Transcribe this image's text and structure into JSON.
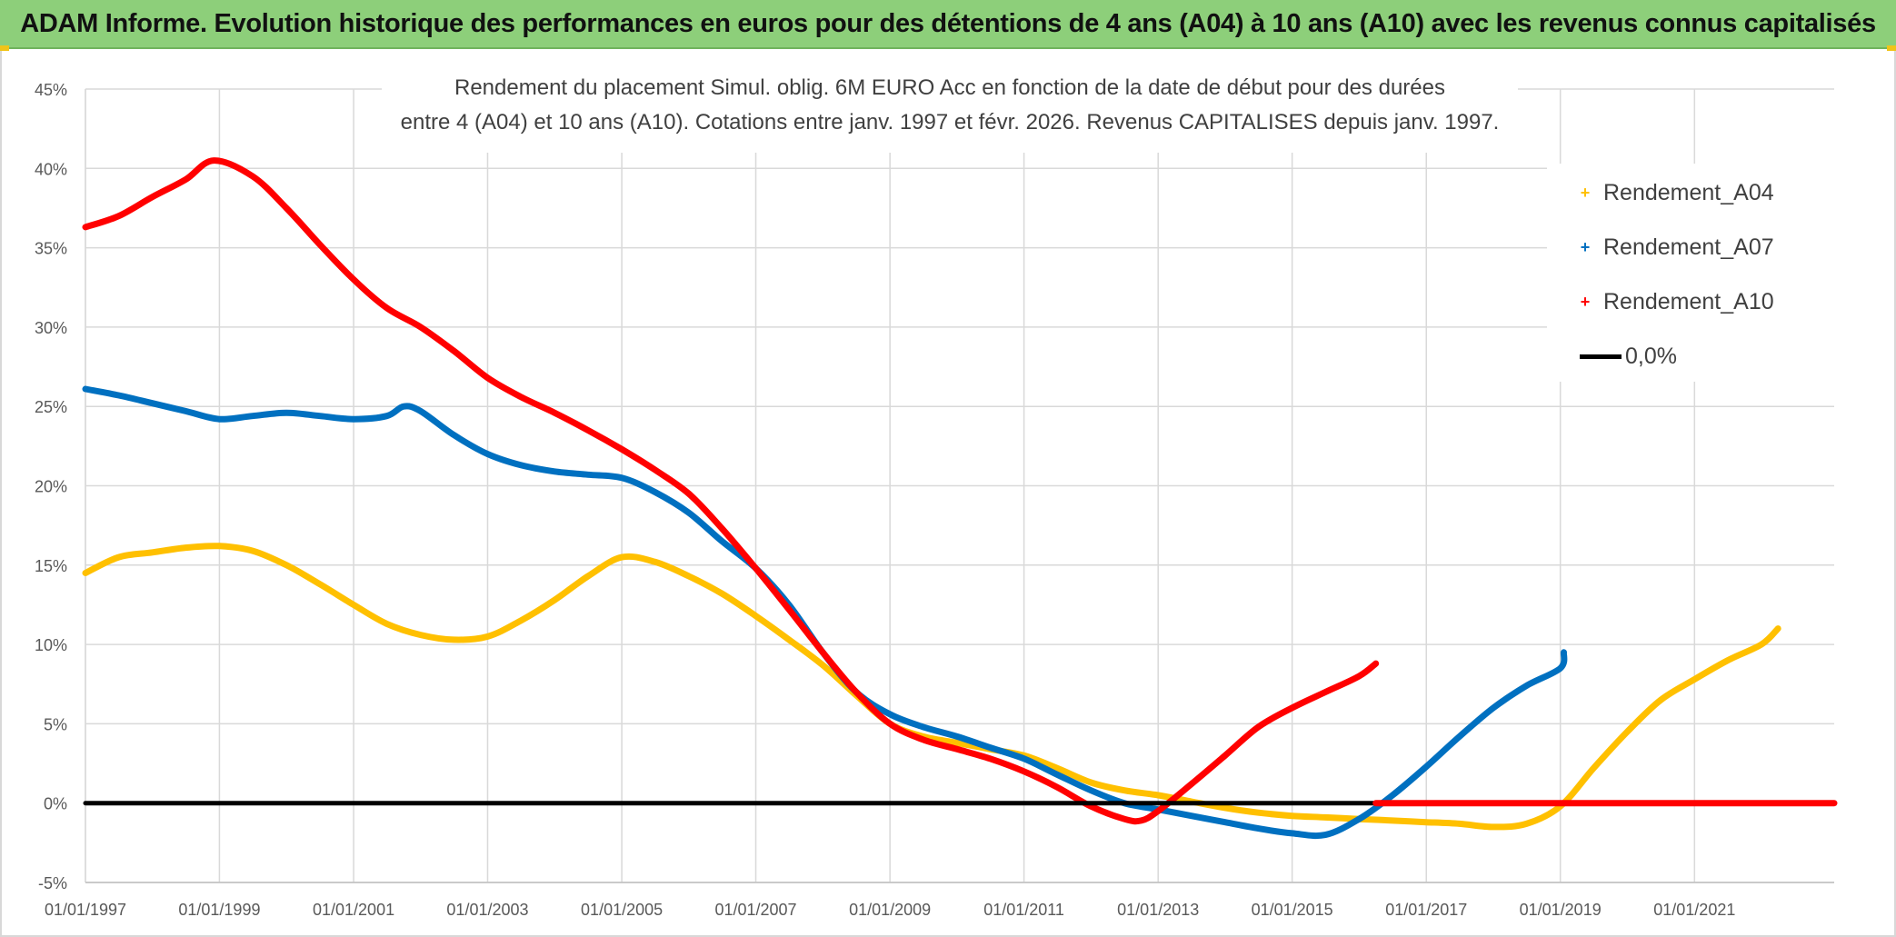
{
  "header": {
    "title": "ADAM Informe. Evolution historique des performances en euros pour des détentions de 4 ans (A04) à 10 ans (A10) avec les revenus connus capitalisés"
  },
  "subtitle": {
    "line1": "Rendement du placement Simul. oblig. 6M EURO Acc en fonction de la date de début pour des durées",
    "line2": "entre 4 (A04) et 10 ans (A10). Cotations entre janv. 1997 et févr. 2026. Revenus CAPITALISES depuis janv. 1997."
  },
  "legend": {
    "a04": "Rendement_A04",
    "a07": "Rendement_A07",
    "a10": "Rendement_A10",
    "zero": "0,0%",
    "marker": "+"
  },
  "chart_data": {
    "type": "line",
    "title": "Rendement du placement Simul. oblig. 6M EURO Acc en fonction de la date de début pour des durées entre 4 (A04) et 10 ans (A10). Cotations entre janv. 1997 et févr. 2026. Revenus CAPITALISES depuis janv. 1997.",
    "xlabel": "",
    "ylabel": "",
    "x_type": "date",
    "xlim": [
      "1997-01-01",
      "2023-02-01"
    ],
    "ylim": [
      -5,
      45
    ],
    "x_ticks": [
      "01/01/1997",
      "01/01/1999",
      "01/01/2001",
      "01/01/2003",
      "01/01/2005",
      "01/01/2007",
      "01/01/2009",
      "01/01/2011",
      "01/01/2013",
      "01/01/2015",
      "01/01/2017",
      "01/01/2019",
      "01/01/2021"
    ],
    "x_tick_dates": [
      "1997-01-01",
      "1999-01-01",
      "2001-01-01",
      "2003-01-01",
      "2005-01-01",
      "2007-01-01",
      "2009-01-01",
      "2011-01-01",
      "2013-01-01",
      "2015-01-01",
      "2017-01-01",
      "2019-01-01",
      "2021-01-01"
    ],
    "y_ticks": [
      -5,
      0,
      5,
      10,
      15,
      20,
      25,
      30,
      35,
      40,
      45
    ],
    "y_tick_labels": [
      "-5%",
      "0%",
      "5%",
      "10%",
      "15%",
      "20%",
      "25%",
      "30%",
      "35%",
      "40%",
      "45%"
    ],
    "grid": true,
    "legend_position": "right",
    "series": [
      {
        "name": "Rendement_A04",
        "color": "#ffc000",
        "points": [
          [
            "1997-01-01",
            14.5
          ],
          [
            "1997-07-01",
            15.5
          ],
          [
            "1998-01-01",
            15.8
          ],
          [
            "1998-07-01",
            16.1
          ],
          [
            "1999-01-01",
            16.2
          ],
          [
            "1999-07-01",
            15.9
          ],
          [
            "2000-01-01",
            15.0
          ],
          [
            "2000-07-01",
            13.8
          ],
          [
            "2001-01-01",
            12.5
          ],
          [
            "2001-07-01",
            11.3
          ],
          [
            "2002-01-01",
            10.6
          ],
          [
            "2002-07-01",
            10.3
          ],
          [
            "2003-01-01",
            10.5
          ],
          [
            "2003-07-01",
            11.5
          ],
          [
            "2004-01-01",
            12.8
          ],
          [
            "2004-07-01",
            14.3
          ],
          [
            "2005-01-01",
            15.5
          ],
          [
            "2005-07-01",
            15.2
          ],
          [
            "2006-01-01",
            14.3
          ],
          [
            "2006-07-01",
            13.2
          ],
          [
            "2007-01-01",
            11.8
          ],
          [
            "2007-07-01",
            10.3
          ],
          [
            "2008-01-01",
            8.7
          ],
          [
            "2008-07-01",
            6.8
          ],
          [
            "2009-01-01",
            5.0
          ],
          [
            "2009-07-01",
            4.2
          ],
          [
            "2010-01-01",
            3.8
          ],
          [
            "2010-07-01",
            3.4
          ],
          [
            "2011-01-01",
            3.0
          ],
          [
            "2011-07-01",
            2.2
          ],
          [
            "2012-01-01",
            1.3
          ],
          [
            "2012-07-01",
            0.8
          ],
          [
            "2013-01-01",
            0.5
          ],
          [
            "2013-07-01",
            0.1
          ],
          [
            "2014-01-01",
            -0.3
          ],
          [
            "2014-07-01",
            -0.6
          ],
          [
            "2015-01-01",
            -0.8
          ],
          [
            "2015-07-01",
            -0.9
          ],
          [
            "2016-01-01",
            -1.0
          ],
          [
            "2016-07-01",
            -1.1
          ],
          [
            "2017-01-01",
            -1.2
          ],
          [
            "2017-07-01",
            -1.3
          ],
          [
            "2018-01-01",
            -1.5
          ],
          [
            "2018-07-01",
            -1.3
          ],
          [
            "2019-01-01",
            -0.2
          ],
          [
            "2019-07-01",
            2.2
          ],
          [
            "2020-01-01",
            4.5
          ],
          [
            "2020-07-01",
            6.5
          ],
          [
            "2021-01-01",
            7.8
          ],
          [
            "2021-07-01",
            9.0
          ],
          [
            "2022-01-01",
            10.0
          ],
          [
            "2022-04-01",
            11.0
          ]
        ]
      },
      {
        "name": "Rendement_A07",
        "color": "#0070c0",
        "points": [
          [
            "1997-01-01",
            26.1
          ],
          [
            "1997-07-01",
            25.7
          ],
          [
            "1998-01-01",
            25.2
          ],
          [
            "1998-07-01",
            24.7
          ],
          [
            "1999-01-01",
            24.2
          ],
          [
            "1999-07-01",
            24.4
          ],
          [
            "2000-01-01",
            24.6
          ],
          [
            "2000-07-01",
            24.4
          ],
          [
            "2001-01-01",
            24.2
          ],
          [
            "2001-07-01",
            24.4
          ],
          [
            "2001-10-01",
            25.0
          ],
          [
            "2002-01-01",
            24.7
          ],
          [
            "2002-07-01",
            23.2
          ],
          [
            "2003-01-01",
            22.0
          ],
          [
            "2003-07-01",
            21.3
          ],
          [
            "2004-01-01",
            20.9
          ],
          [
            "2004-07-01",
            20.7
          ],
          [
            "2005-01-01",
            20.5
          ],
          [
            "2005-07-01",
            19.6
          ],
          [
            "2006-01-01",
            18.3
          ],
          [
            "2006-07-01",
            16.5
          ],
          [
            "2007-01-01",
            14.8
          ],
          [
            "2007-07-01",
            12.5
          ],
          [
            "2008-01-01",
            9.5
          ],
          [
            "2008-07-01",
            7.0
          ],
          [
            "2009-01-01",
            5.6
          ],
          [
            "2009-07-01",
            4.8
          ],
          [
            "2010-01-01",
            4.2
          ],
          [
            "2010-07-01",
            3.5
          ],
          [
            "2011-01-01",
            2.8
          ],
          [
            "2011-07-01",
            1.8
          ],
          [
            "2012-01-01",
            0.8
          ],
          [
            "2012-07-01",
            0.0
          ],
          [
            "2013-01-01",
            -0.4
          ],
          [
            "2013-07-01",
            -0.8
          ],
          [
            "2014-01-01",
            -1.2
          ],
          [
            "2014-07-01",
            -1.6
          ],
          [
            "2015-01-01",
            -1.9
          ],
          [
            "2015-07-01",
            -2.0
          ],
          [
            "2016-01-01",
            -1.0
          ],
          [
            "2016-07-01",
            0.5
          ],
          [
            "2017-01-01",
            2.3
          ],
          [
            "2017-07-01",
            4.2
          ],
          [
            "2018-01-01",
            6.0
          ],
          [
            "2018-07-01",
            7.4
          ],
          [
            "2019-01-01",
            8.5
          ],
          [
            "2019-01-20",
            9.5
          ]
        ]
      },
      {
        "name": "Rendement_A10",
        "color": "#ff0000",
        "points": [
          [
            "1997-01-01",
            36.3
          ],
          [
            "1997-07-01",
            37.0
          ],
          [
            "1998-01-01",
            38.2
          ],
          [
            "1998-07-01",
            39.3
          ],
          [
            "1998-12-01",
            40.5
          ],
          [
            "1999-07-01",
            39.5
          ],
          [
            "2000-01-01",
            37.5
          ],
          [
            "2000-07-01",
            35.2
          ],
          [
            "2001-01-01",
            33.0
          ],
          [
            "2001-07-01",
            31.2
          ],
          [
            "2002-01-01",
            30.0
          ],
          [
            "2002-07-01",
            28.5
          ],
          [
            "2003-01-01",
            26.8
          ],
          [
            "2003-07-01",
            25.6
          ],
          [
            "2004-01-01",
            24.6
          ],
          [
            "2004-07-01",
            23.5
          ],
          [
            "2005-01-01",
            22.3
          ],
          [
            "2005-07-01",
            21.0
          ],
          [
            "2006-01-01",
            19.5
          ],
          [
            "2006-07-01",
            17.3
          ],
          [
            "2007-01-01",
            14.8
          ],
          [
            "2007-07-01",
            12.2
          ],
          [
            "2008-01-01",
            9.5
          ],
          [
            "2008-07-01",
            7.0
          ],
          [
            "2009-01-01",
            5.0
          ],
          [
            "2009-07-01",
            4.0
          ],
          [
            "2010-01-01",
            3.4
          ],
          [
            "2010-07-01",
            2.8
          ],
          [
            "2011-01-01",
            2.0
          ],
          [
            "2011-07-01",
            1.0
          ],
          [
            "2012-01-01",
            -0.2
          ],
          [
            "2012-07-01",
            -1.0
          ],
          [
            "2012-10-01",
            -1.1
          ],
          [
            "2013-01-01",
            -0.5
          ],
          [
            "2013-07-01",
            1.2
          ],
          [
            "2014-01-01",
            3.0
          ],
          [
            "2014-07-01",
            4.8
          ],
          [
            "2015-01-01",
            6.0
          ],
          [
            "2015-07-01",
            7.0
          ],
          [
            "2016-01-01",
            8.0
          ],
          [
            "2016-04-01",
            8.8
          ]
        ]
      },
      {
        "name": "0,0%",
        "color": "#000000",
        "points": [
          [
            "1997-01-01",
            0
          ],
          [
            "2016-04-01",
            0
          ]
        ]
      },
      {
        "name": "",
        "color": "#ff0000",
        "points": [
          [
            "2016-04-01",
            0
          ],
          [
            "2023-02-01",
            0
          ]
        ]
      }
    ]
  }
}
